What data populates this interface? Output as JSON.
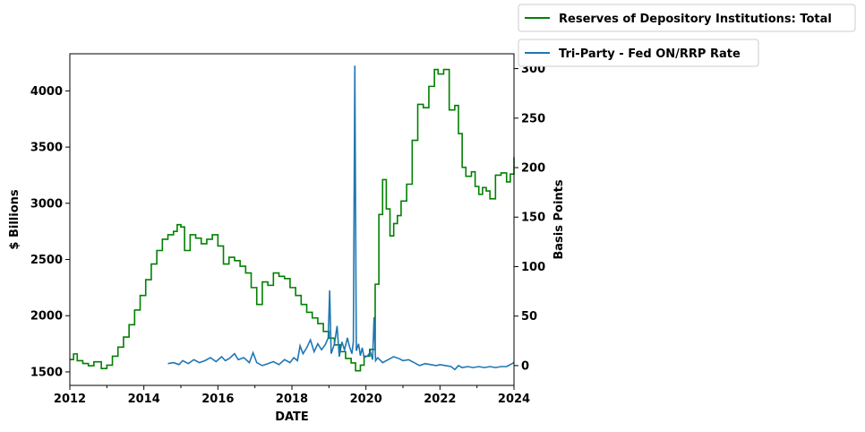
{
  "chart_data": {
    "type": "line",
    "xlabel": "DATE",
    "ylabel_left": "$ Billions",
    "ylabel_right": "Basis Points",
    "xlim": [
      2012,
      2024
    ],
    "ylim_left": [
      1380,
      4330
    ],
    "ylim_right": [
      -20,
      315
    ],
    "x_ticks": [
      "2012",
      "2014",
      "2016",
      "2018",
      "2020",
      "2022",
      "2024"
    ],
    "y_left_ticks": [
      "1500",
      "2000",
      "2500",
      "3000",
      "3500",
      "4000"
    ],
    "y_right_ticks": [
      "0",
      "50",
      "100",
      "150",
      "200",
      "250",
      "300"
    ],
    "legend_position": "outside-top-right",
    "series": [
      {
        "name": "Reserves of Depository Institutions: Total",
        "axis": "left",
        "color": "#008000",
        "step": true,
        "points": [
          [
            2012.0,
            1610
          ],
          [
            2012.1,
            1660
          ],
          [
            2012.2,
            1600
          ],
          [
            2012.35,
            1575
          ],
          [
            2012.5,
            1555
          ],
          [
            2012.65,
            1590
          ],
          [
            2012.85,
            1530
          ],
          [
            2013.0,
            1560
          ],
          [
            2013.15,
            1640
          ],
          [
            2013.3,
            1720
          ],
          [
            2013.45,
            1810
          ],
          [
            2013.6,
            1920
          ],
          [
            2013.75,
            2050
          ],
          [
            2013.9,
            2180
          ],
          [
            2014.05,
            2320
          ],
          [
            2014.2,
            2460
          ],
          [
            2014.35,
            2580
          ],
          [
            2014.5,
            2680
          ],
          [
            2014.65,
            2720
          ],
          [
            2014.8,
            2750
          ],
          [
            2014.9,
            2810
          ],
          [
            2015.0,
            2790
          ],
          [
            2015.1,
            2580
          ],
          [
            2015.25,
            2720
          ],
          [
            2015.4,
            2690
          ],
          [
            2015.55,
            2640
          ],
          [
            2015.7,
            2680
          ],
          [
            2015.85,
            2720
          ],
          [
            2016.0,
            2620
          ],
          [
            2016.15,
            2460
          ],
          [
            2016.3,
            2520
          ],
          [
            2016.45,
            2490
          ],
          [
            2016.6,
            2440
          ],
          [
            2016.75,
            2380
          ],
          [
            2016.9,
            2250
          ],
          [
            2017.05,
            2100
          ],
          [
            2017.2,
            2300
          ],
          [
            2017.35,
            2270
          ],
          [
            2017.5,
            2380
          ],
          [
            2017.65,
            2350
          ],
          [
            2017.8,
            2330
          ],
          [
            2017.95,
            2250
          ],
          [
            2018.1,
            2180
          ],
          [
            2018.25,
            2100
          ],
          [
            2018.4,
            2030
          ],
          [
            2018.55,
            1980
          ],
          [
            2018.7,
            1930
          ],
          [
            2018.85,
            1860
          ],
          [
            2019.0,
            1800
          ],
          [
            2019.15,
            1740
          ],
          [
            2019.3,
            1680
          ],
          [
            2019.45,
            1620
          ],
          [
            2019.6,
            1580
          ],
          [
            2019.72,
            1510
          ],
          [
            2019.85,
            1560
          ],
          [
            2019.95,
            1640
          ],
          [
            2020.1,
            1700
          ],
          [
            2020.25,
            2280
          ],
          [
            2020.35,
            2900
          ],
          [
            2020.45,
            3210
          ],
          [
            2020.55,
            2950
          ],
          [
            2020.65,
            2710
          ],
          [
            2020.75,
            2820
          ],
          [
            2020.85,
            2890
          ],
          [
            2020.95,
            3020
          ],
          [
            2021.1,
            3170
          ],
          [
            2021.25,
            3560
          ],
          [
            2021.4,
            3880
          ],
          [
            2021.55,
            3850
          ],
          [
            2021.7,
            4040
          ],
          [
            2021.85,
            4190
          ],
          [
            2021.95,
            4150
          ],
          [
            2022.1,
            4190
          ],
          [
            2022.25,
            3830
          ],
          [
            2022.4,
            3870
          ],
          [
            2022.5,
            3620
          ],
          [
            2022.6,
            3320
          ],
          [
            2022.7,
            3240
          ],
          [
            2022.85,
            3280
          ],
          [
            2022.95,
            3150
          ],
          [
            2023.05,
            3080
          ],
          [
            2023.15,
            3140
          ],
          [
            2023.25,
            3110
          ],
          [
            2023.35,
            3040
          ],
          [
            2023.5,
            3250
          ],
          [
            2023.65,
            3270
          ],
          [
            2023.8,
            3190
          ],
          [
            2023.9,
            3260
          ],
          [
            2024.0,
            3410
          ]
        ]
      },
      {
        "name": "Tri-Party - Fed ON/RRP Rate",
        "axis": "right",
        "color": "#1f77b4",
        "step": false,
        "points": [
          [
            2014.65,
            2
          ],
          [
            2014.8,
            3
          ],
          [
            2014.95,
            1
          ],
          [
            2015.05,
            5
          ],
          [
            2015.2,
            2
          ],
          [
            2015.35,
            6
          ],
          [
            2015.5,
            3
          ],
          [
            2015.65,
            5
          ],
          [
            2015.8,
            8
          ],
          [
            2015.95,
            4
          ],
          [
            2016.1,
            9
          ],
          [
            2016.2,
            5
          ],
          [
            2016.3,
            7
          ],
          [
            2016.45,
            12
          ],
          [
            2016.55,
            6
          ],
          [
            2016.7,
            8
          ],
          [
            2016.85,
            3
          ],
          [
            2016.95,
            13
          ],
          [
            2017.05,
            3
          ],
          [
            2017.2,
            0
          ],
          [
            2017.35,
            2
          ],
          [
            2017.5,
            4
          ],
          [
            2017.65,
            1
          ],
          [
            2017.8,
            6
          ],
          [
            2017.95,
            3
          ],
          [
            2018.05,
            8
          ],
          [
            2018.15,
            5
          ],
          [
            2018.22,
            20
          ],
          [
            2018.3,
            12
          ],
          [
            2018.4,
            18
          ],
          [
            2018.5,
            26
          ],
          [
            2018.6,
            14
          ],
          [
            2018.7,
            22
          ],
          [
            2018.8,
            16
          ],
          [
            2018.9,
            21
          ],
          [
            2018.98,
            28
          ],
          [
            2019.02,
            76
          ],
          [
            2019.06,
            12
          ],
          [
            2019.15,
            22
          ],
          [
            2019.22,
            40
          ],
          [
            2019.28,
            9
          ],
          [
            2019.35,
            24
          ],
          [
            2019.42,
            16
          ],
          [
            2019.5,
            28
          ],
          [
            2019.55,
            20
          ],
          [
            2019.62,
            12
          ],
          [
            2019.66,
            24
          ],
          [
            2019.7,
            303
          ],
          [
            2019.74,
            15
          ],
          [
            2019.8,
            22
          ],
          [
            2019.85,
            10
          ],
          [
            2019.9,
            18
          ],
          [
            2019.95,
            8
          ],
          [
            2020.05,
            10
          ],
          [
            2020.12,
            14
          ],
          [
            2020.18,
            6
          ],
          [
            2020.22,
            49
          ],
          [
            2020.26,
            5
          ],
          [
            2020.32,
            8
          ],
          [
            2020.45,
            3
          ],
          [
            2020.6,
            6
          ],
          [
            2020.75,
            9
          ],
          [
            2020.9,
            7
          ],
          [
            2021.0,
            5
          ],
          [
            2021.15,
            6
          ],
          [
            2021.3,
            3
          ],
          [
            2021.45,
            0
          ],
          [
            2021.6,
            2
          ],
          [
            2021.75,
            1
          ],
          [
            2021.9,
            0
          ],
          [
            2022.0,
            1
          ],
          [
            2022.15,
            0
          ],
          [
            2022.3,
            -1
          ],
          [
            2022.4,
            -4
          ],
          [
            2022.5,
            0
          ],
          [
            2022.6,
            -2
          ],
          [
            2022.75,
            -1
          ],
          [
            2022.9,
            -2
          ],
          [
            2023.05,
            -1
          ],
          [
            2023.2,
            -2
          ],
          [
            2023.35,
            -1
          ],
          [
            2023.5,
            -2
          ],
          [
            2023.65,
            -1
          ],
          [
            2023.8,
            -1
          ],
          [
            2023.9,
            1
          ],
          [
            2024.0,
            3
          ]
        ]
      }
    ]
  }
}
